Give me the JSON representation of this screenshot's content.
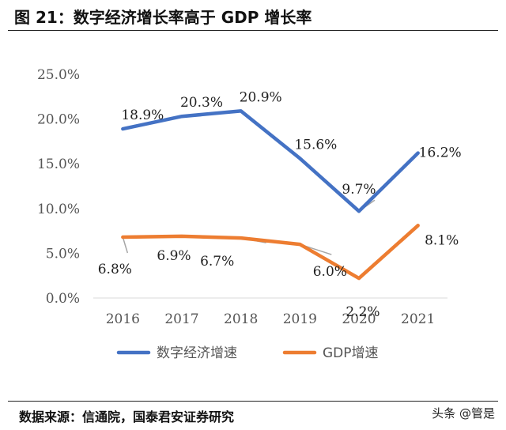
{
  "header": {
    "title": "图 21：数字经济增长率高于 GDP 增长率"
  },
  "footer": {
    "source": "数据来源：信通院，国泰君安证券研究",
    "watermark": "头条 @管是"
  },
  "chart_data": {
    "type": "line",
    "title": "",
    "categories": [
      "2016",
      "2017",
      "2018",
      "2019",
      "2020",
      "2021"
    ],
    "ylim": [
      0,
      25
    ],
    "yticks": [
      "0.0%",
      "5.0%",
      "10.0%",
      "15.0%",
      "20.0%",
      "25.0%"
    ],
    "series": [
      {
        "name": "数字经济增速",
        "color": "#4472C4",
        "values": [
          18.9,
          20.3,
          20.9,
          15.6,
          9.7,
          16.2
        ],
        "labels": [
          "18.9%",
          "20.3%",
          "20.9%",
          "15.6%",
          "9.7%",
          "16.2%"
        ]
      },
      {
        "name": "GDP增速",
        "color": "#ED7D31",
        "values": [
          6.8,
          6.9,
          6.7,
          6.0,
          2.2,
          8.1
        ],
        "labels": [
          "6.8%",
          "6.9%",
          "6.7%",
          "6.0%",
          "2.2%",
          "8.1%"
        ]
      }
    ],
    "legend_position": "bottom"
  }
}
